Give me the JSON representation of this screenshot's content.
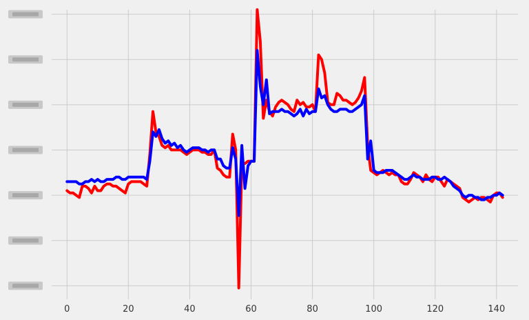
{
  "chart_data": {
    "type": "line",
    "title": "",
    "xlabel": "",
    "ylabel": "",
    "xlim": [
      -5,
      147
    ],
    "ylim": [
      -2.3,
      4.1
    ],
    "grid": true,
    "x_ticks": [
      0,
      20,
      40,
      60,
      80,
      100,
      120,
      140
    ],
    "x_tick_labels": [
      "0",
      "20",
      "40",
      "60",
      "80",
      "100",
      "120",
      "140"
    ],
    "y_ticks": [
      -2,
      -1,
      0,
      1,
      2,
      3,
      4
    ],
    "y_tick_labels_note": "y-axis tick labels are blurred/unreadable in the image",
    "series": [
      {
        "color": "#ff0000",
        "values": [
          0.1,
          0.05,
          0.05,
          0.0,
          -0.05,
          0.2,
          0.2,
          0.15,
          0.05,
          0.2,
          0.1,
          0.1,
          0.2,
          0.25,
          0.25,
          0.2,
          0.2,
          0.15,
          0.1,
          0.05,
          0.25,
          0.3,
          0.3,
          0.3,
          0.3,
          0.25,
          0.2,
          0.9,
          1.85,
          1.4,
          1.3,
          1.1,
          1.05,
          1.1,
          1.0,
          1.0,
          1.0,
          1.0,
          0.95,
          0.9,
          0.95,
          1.0,
          1.0,
          1.0,
          0.95,
          0.95,
          0.9,
          0.9,
          1.0,
          0.6,
          0.55,
          0.45,
          0.4,
          0.4,
          1.35,
          1.0,
          -2.05,
          0.7,
          0.7,
          0.75,
          0.75,
          0.75,
          4.1,
          3.4,
          1.7,
          2.1,
          1.85,
          1.75,
          1.95,
          2.05,
          2.1,
          2.05,
          2.0,
          1.9,
          1.85,
          2.1,
          2.0,
          2.05,
          1.95,
          1.95,
          2.0,
          1.85,
          3.1,
          3.0,
          2.7,
          2.05,
          2.0,
          2.0,
          2.25,
          2.2,
          2.1,
          2.1,
          2.05,
          2.0,
          2.05,
          2.15,
          2.3,
          2.6,
          1.1,
          0.55,
          0.5,
          0.45,
          0.5,
          0.55,
          0.5,
          0.45,
          0.5,
          0.45,
          0.45,
          0.3,
          0.25,
          0.25,
          0.35,
          0.5,
          0.45,
          0.4,
          0.3,
          0.45,
          0.35,
          0.3,
          0.4,
          0.4,
          0.3,
          0.2,
          0.35,
          0.3,
          0.25,
          0.2,
          0.15,
          -0.05,
          -0.1,
          -0.15,
          -0.1,
          -0.05,
          -0.1,
          -0.05,
          -0.05,
          -0.1,
          -0.15,
          0.0,
          0.05,
          0.05,
          -0.05
        ],
        "x_start": 0,
        "x_step": 1
      },
      {
        "color": "#0000ff",
        "values": [
          0.3,
          0.3,
          0.3,
          0.3,
          0.25,
          0.25,
          0.3,
          0.3,
          0.35,
          0.3,
          0.35,
          0.3,
          0.3,
          0.35,
          0.35,
          0.35,
          0.4,
          0.4,
          0.35,
          0.35,
          0.4,
          0.4,
          0.4,
          0.4,
          0.4,
          0.4,
          0.35,
          0.75,
          1.4,
          1.3,
          1.45,
          1.25,
          1.15,
          1.2,
          1.1,
          1.15,
          1.05,
          1.1,
          1.0,
          0.95,
          1.0,
          1.05,
          1.05,
          1.05,
          1.0,
          1.0,
          0.95,
          1.0,
          1.0,
          0.8,
          0.8,
          0.65,
          0.6,
          0.6,
          1.05,
          0.8,
          -0.45,
          1.1,
          0.15,
          0.65,
          0.75,
          0.75,
          3.2,
          2.4,
          2.0,
          2.55,
          1.8,
          1.85,
          1.85,
          1.85,
          1.9,
          1.85,
          1.85,
          1.8,
          1.75,
          1.8,
          1.9,
          1.75,
          1.9,
          1.8,
          1.85,
          1.85,
          2.35,
          2.15,
          2.2,
          2.0,
          1.9,
          1.85,
          1.85,
          1.9,
          1.9,
          1.9,
          1.85,
          1.85,
          1.9,
          1.95,
          2.0,
          2.2,
          0.8,
          1.2,
          0.55,
          0.5,
          0.5,
          0.5,
          0.55,
          0.55,
          0.55,
          0.5,
          0.45,
          0.4,
          0.35,
          0.35,
          0.4,
          0.45,
          0.4,
          0.4,
          0.35,
          0.35,
          0.35,
          0.4,
          0.4,
          0.35,
          0.35,
          0.4,
          0.35,
          0.3,
          0.2,
          0.15,
          0.1,
          0.0,
          -0.05,
          0.0,
          0.0,
          -0.05,
          -0.05,
          -0.1,
          -0.1,
          -0.05,
          -0.05,
          0.0,
          0.0,
          0.05,
          0.0
        ],
        "x_start": 0,
        "x_step": 1
      }
    ]
  }
}
